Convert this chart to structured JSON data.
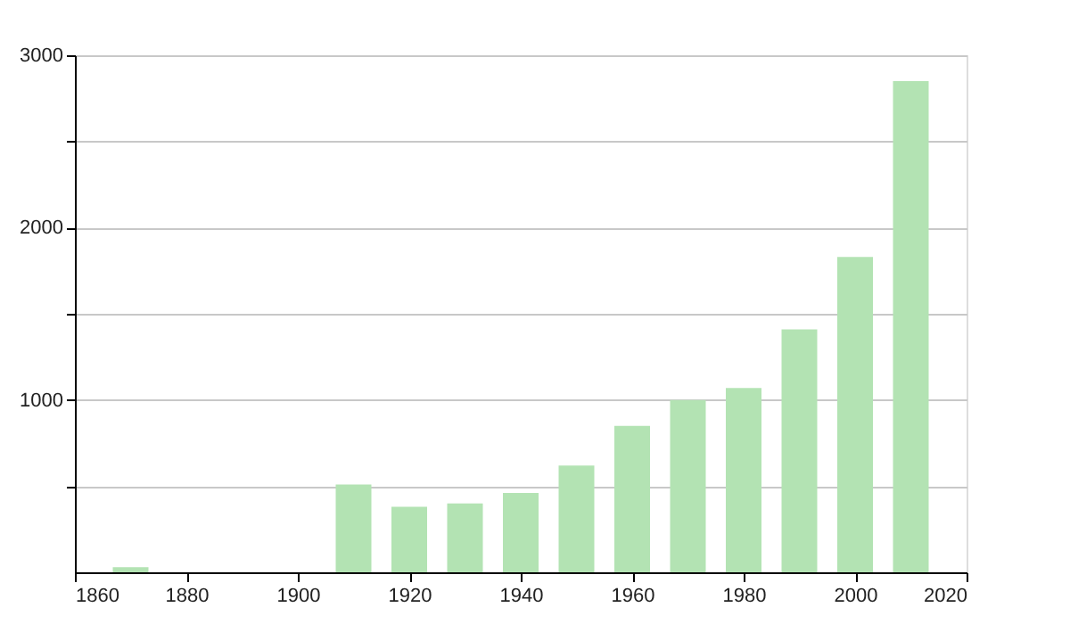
{
  "chart_data": {
    "type": "bar",
    "x": [
      1870,
      1910,
      1920,
      1930,
      1940,
      1950,
      1960,
      1970,
      1980,
      1990,
      2000,
      2010
    ],
    "values": [
      30,
      510,
      380,
      400,
      460,
      620,
      850,
      1000,
      1070,
      1410,
      1830,
      2850
    ],
    "color": "#b3e3b3",
    "xlim": [
      1860,
      2020
    ],
    "xticks": [
      1860,
      1880,
      1900,
      1920,
      1940,
      1960,
      1980,
      2000,
      2020
    ],
    "ylim": [
      0,
      3000
    ],
    "yticks": [
      {
        "value": 500,
        "label": null
      },
      1000,
      {
        "value": 1500,
        "label": null
      },
      2000,
      {
        "value": 2500,
        "label": null
      },
      3000
    ],
    "grid": "y"
  }
}
